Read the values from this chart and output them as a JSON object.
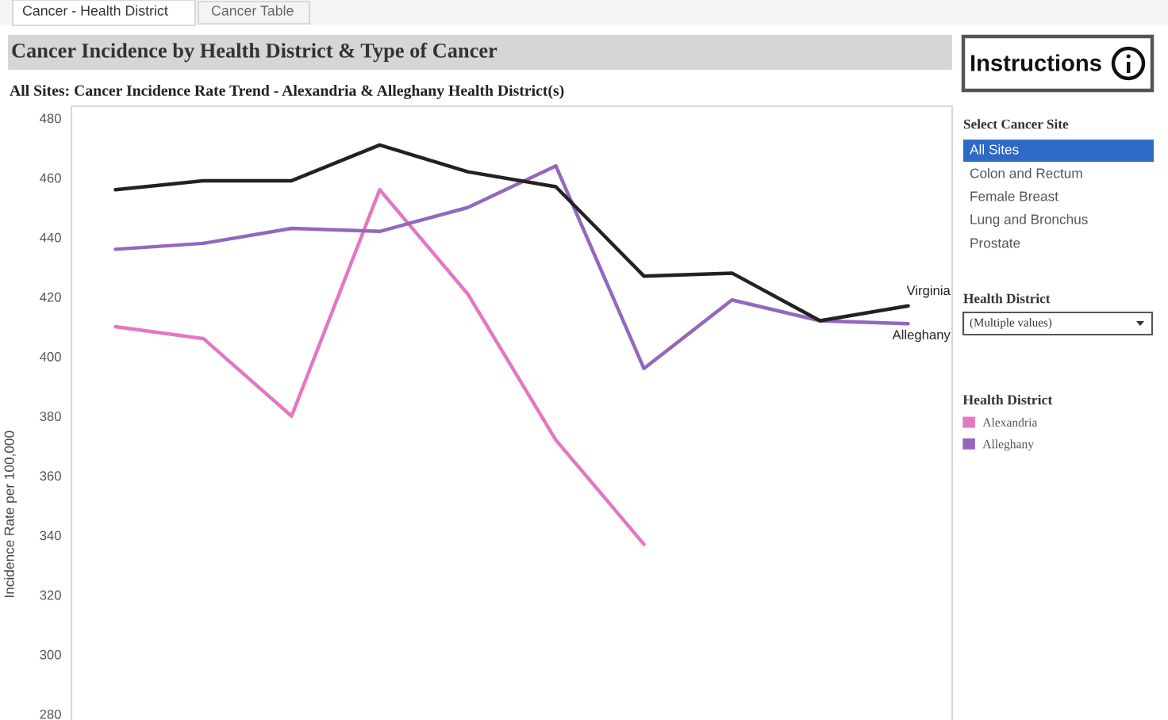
{
  "chart_data": [
    {
      "type": "line",
      "title": "Cancer Incidence by Health District & Type of Cancer",
      "subtitle": "All Sites: Cancer Incidence Rate Trend - Alexandria & Alleghany Health District(s)",
      "ylabel": "Incidence Rate per 100,000",
      "legend_title": "Health District",
      "categories": [
        null,
        null,
        null,
        null,
        null,
        null,
        null,
        null,
        null,
        null
      ],
      "series": [
        {
          "name": "Alexandria",
          "color": "#e377c2",
          "values": [
            410,
            406,
            380,
            456,
            421,
            372,
            337,
            null,
            null,
            null
          ]
        },
        {
          "name": "Alleghany",
          "color": "#9467bd",
          "values": [
            436,
            438,
            443,
            442,
            450,
            464,
            396,
            419,
            412,
            411
          ]
        },
        {
          "color": "#222222",
          "values": [
            456,
            459,
            459,
            471,
            462,
            457,
            427,
            428,
            412,
            417
          ]
        }
      ],
      "ylim": [
        278,
        484
      ],
      "yticks": [
        280,
        300,
        320,
        340,
        360,
        380,
        400,
        420,
        440,
        460,
        480
      ],
      "grid": false,
      "legend": "right",
      "tick_labels": "y",
      "annotations": [
        "Virginia",
        "Alleghany"
      ]
    },
    {
      "type": "other",
      "annotations": [
        "Cancer - Health District",
        "Cancer Table",
        "Instructions",
        "Select Cancer Site",
        "All Sites",
        "Colon and Rectum",
        "Female Breast",
        "Lung and Bronchus",
        "Prostate",
        "Health District",
        "(Multiple values)"
      ]
    }
  ]
}
